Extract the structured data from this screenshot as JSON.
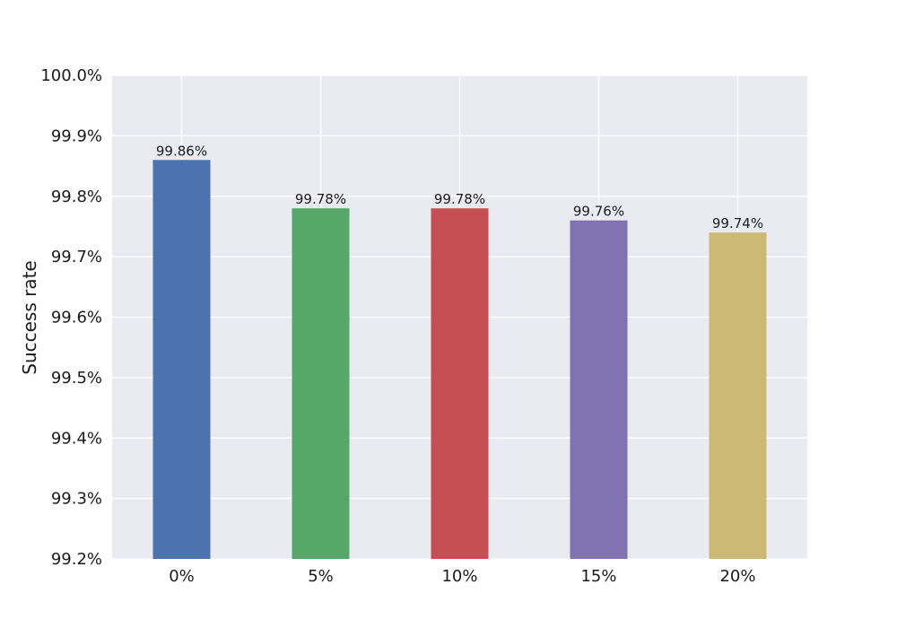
{
  "chart_data": {
    "type": "bar",
    "title": "",
    "xlabel": "",
    "ylabel": "Success rate",
    "categories": [
      "0%",
      "5%",
      "10%",
      "15%",
      "20%"
    ],
    "values": [
      99.86,
      99.78,
      99.78,
      99.76,
      99.74
    ],
    "value_labels": [
      "99.86%",
      "99.78%",
      "99.78%",
      "99.76%",
      "99.74%"
    ],
    "bar_colors": [
      "#4c72b0",
      "#55a868",
      "#c44e52",
      "#8172b2",
      "#ccb974"
    ],
    "ylim": [
      99.2,
      100.0
    ],
    "yticks": [
      99.2,
      99.3,
      99.4,
      99.5,
      99.6,
      99.7,
      99.8,
      99.9,
      100.0
    ],
    "ytick_labels": [
      "99.2%",
      "99.3%",
      "99.4%",
      "99.5%",
      "99.6%",
      "99.7%",
      "99.8%",
      "99.9%",
      "100.0%"
    ],
    "grid": true,
    "plot_background": "#eaeaf2",
    "grid_color": "#ffffff"
  }
}
